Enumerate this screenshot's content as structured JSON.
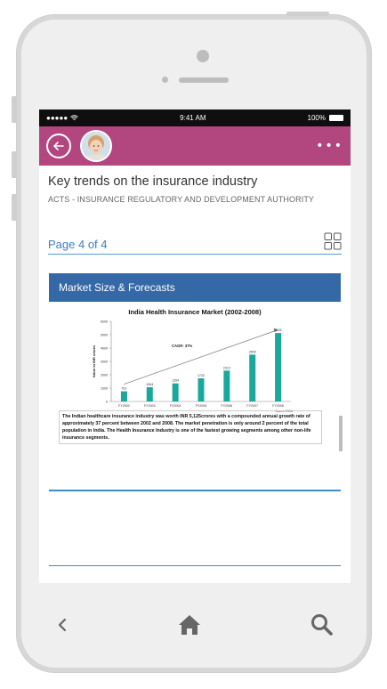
{
  "status": {
    "time": "9:41 AM",
    "battery": "100%"
  },
  "header": {
    "title": "Key trends on the insurance industry",
    "subtitle": "ACTS - INSURANCE REGULATORY AND DEVELOPMENT AUTHORITY"
  },
  "pager": {
    "label": "Page 4 of 4"
  },
  "slide": {
    "heading": "Market Size & Forecasts",
    "caption": "The Indian healthcare insurance industry was worth INR 5,125crores with a compounded annual growth rate of approximately 37 percent between 2002 and 2008. The market penetration is only around 2 percent of the total population in India. The Health Insurance Industry is one of the fastest growing segments among other non-life insurance segments."
  },
  "chart_data": {
    "type": "bar",
    "title": "India Health Insurance Market (2002-2008)",
    "categories": [
      "FY2002",
      "FY2003",
      "FY2004",
      "FY2005",
      "FY2006",
      "FY2007",
      "FY2008"
    ],
    "values": [
      761,
      1064,
      1354,
      1732,
      2313,
      3509,
      5125
    ],
    "ylabel": "Value in INR crores",
    "ylim": [
      0,
      6000
    ],
    "yticks": [
      "0",
      "1000",
      "2000",
      "3000",
      "4000",
      "5000",
      "6000"
    ],
    "annotation": "CAGR: 37%",
    "source": "Source: IRDA",
    "bar_color": "#1aa89c"
  },
  "colors": {
    "accent": "#b2477f",
    "slide_header": "#3468a6",
    "link": "#3a7ec0"
  }
}
